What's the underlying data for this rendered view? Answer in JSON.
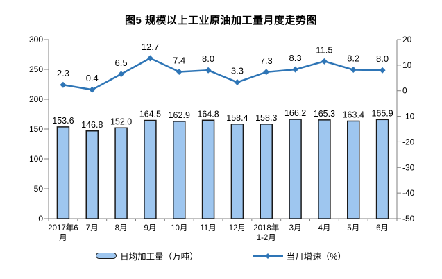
{
  "title": "图5  规模以上工业原油加工量月度走势图",
  "colors": {
    "bar_fill": "#9EC6EF",
    "bar_border": "#1a1a1a",
    "line": "#2E75B6",
    "axis": "#808080",
    "text": "#000000"
  },
  "chart_data": {
    "type": "bar+line combo",
    "title": "图5  规模以上工业原油加工量月度走势图",
    "categories": [
      "2017年6\n月",
      "7月",
      "8月",
      "9月",
      "10月",
      "11月",
      "12月",
      "2018年\n1-2月",
      "3月",
      "4月",
      "5月",
      "6月"
    ],
    "series": [
      {
        "name": "日均加工量（万吨）",
        "type": "bar",
        "axis": "left",
        "values": [
          153.6,
          146.8,
          152.0,
          164.5,
          162.9,
          164.8,
          158.4,
          158.3,
          166.2,
          165.3,
          163.4,
          165.9
        ]
      },
      {
        "name": "当月增速（%）",
        "type": "line",
        "axis": "right",
        "values": [
          2.3,
          0.4,
          6.5,
          12.7,
          7.4,
          8.0,
          3.3,
          7.3,
          8.3,
          11.5,
          8.2,
          8.0
        ]
      }
    ],
    "left_axis": {
      "min": 0,
      "max": 300,
      "step": 50,
      "ticks": [
        300,
        250,
        200,
        150,
        100,
        50,
        0
      ]
    },
    "right_axis": {
      "min": -50,
      "max": 20,
      "step": 10,
      "ticks": [
        20,
        10,
        0,
        -10,
        -20,
        -30,
        -40,
        -50
      ]
    },
    "grid": "off",
    "legend_position": "bottom"
  }
}
